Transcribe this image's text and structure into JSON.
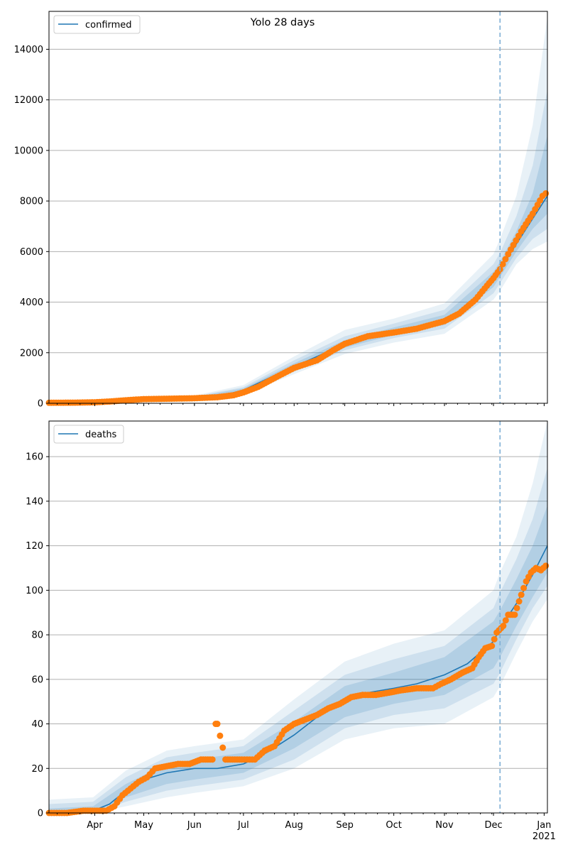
{
  "title": "Yolo 28 days",
  "colors": {
    "line": "#1f77b4",
    "points": "#ff7f0e",
    "band": "#1f77b4",
    "grid": "#b0b0b0",
    "vline": "#7fafd5"
  },
  "x_axis": {
    "start": "2020-03-04",
    "end": "2021-01-03",
    "vline_date": "2020-12-05",
    "month_ticks": [
      {
        "date": "2020-04-01",
        "label": "Apr"
      },
      {
        "date": "2020-05-01",
        "label": "May"
      },
      {
        "date": "2020-06-01",
        "label": "Jun"
      },
      {
        "date": "2020-07-01",
        "label": "Jul"
      },
      {
        "date": "2020-08-01",
        "label": "Aug"
      },
      {
        "date": "2020-09-01",
        "label": "Sep"
      },
      {
        "date": "2020-10-01",
        "label": "Oct"
      },
      {
        "date": "2020-11-01",
        "label": "Nov"
      },
      {
        "date": "2020-12-01",
        "label": "Dec"
      },
      {
        "date": "2021-01-01",
        "label": "Jan"
      }
    ],
    "year_label": "2021"
  },
  "chart_data": [
    {
      "type": "line",
      "legend": "confirmed",
      "legend_position": "top-left",
      "grid": "horizontal",
      "ylim": [
        0,
        15500
      ],
      "yticks": [
        0,
        2000,
        4000,
        6000,
        8000,
        10000,
        12000,
        14000
      ],
      "model_line": [
        [
          "2020-03-04",
          20
        ],
        [
          "2020-04-01",
          40
        ],
        [
          "2020-04-15",
          90
        ],
        [
          "2020-05-01",
          170
        ],
        [
          "2020-06-01",
          210
        ],
        [
          "2020-06-15",
          260
        ],
        [
          "2020-07-01",
          520
        ],
        [
          "2020-07-15",
          950
        ],
        [
          "2020-08-01",
          1450
        ],
        [
          "2020-08-15",
          1850
        ],
        [
          "2020-09-01",
          2350
        ],
        [
          "2020-09-15",
          2650
        ],
        [
          "2020-10-01",
          2850
        ],
        [
          "2020-10-15",
          3000
        ],
        [
          "2020-11-01",
          3300
        ],
        [
          "2020-11-15",
          3800
        ],
        [
          "2020-12-01",
          4900
        ],
        [
          "2020-12-05",
          5300
        ],
        [
          "2020-12-15",
          6300
        ],
        [
          "2020-12-25",
          7300
        ],
        [
          "2021-01-03",
          8200
        ]
      ],
      "band_90": [
        [
          "2020-03-04",
          0,
          60
        ],
        [
          "2020-04-01",
          10,
          80
        ],
        [
          "2020-05-01",
          100,
          260
        ],
        [
          "2020-06-01",
          140,
          300
        ],
        [
          "2020-07-01",
          350,
          720
        ],
        [
          "2020-08-01",
          1150,
          1850
        ],
        [
          "2020-09-01",
          1950,
          2900
        ],
        [
          "2020-10-01",
          2400,
          3350
        ],
        [
          "2020-11-01",
          2750,
          3950
        ],
        [
          "2020-12-01",
          4100,
          5900
        ],
        [
          "2020-12-05",
          4450,
          6500
        ],
        [
          "2020-12-15",
          5500,
          8200
        ],
        [
          "2020-12-25",
          6100,
          11000
        ],
        [
          "2021-01-03",
          6400,
          15300
        ]
      ],
      "band_75": [
        [
          "2020-03-04",
          5,
          45
        ],
        [
          "2020-04-01",
          20,
          65
        ],
        [
          "2020-05-01",
          120,
          230
        ],
        [
          "2020-06-01",
          160,
          270
        ],
        [
          "2020-07-01",
          400,
          640
        ],
        [
          "2020-08-01",
          1250,
          1700
        ],
        [
          "2020-09-01",
          2100,
          2650
        ],
        [
          "2020-10-01",
          2580,
          3150
        ],
        [
          "2020-11-01",
          2950,
          3700
        ],
        [
          "2020-12-01",
          4350,
          5500
        ],
        [
          "2020-12-05",
          4750,
          5950
        ],
        [
          "2020-12-15",
          5750,
          7400
        ],
        [
          "2020-12-25",
          6500,
          9400
        ],
        [
          "2021-01-03",
          6900,
          12400
        ]
      ],
      "band_50": [
        [
          "2020-03-04",
          10,
          35
        ],
        [
          "2020-04-01",
          28,
          55
        ],
        [
          "2020-05-01",
          140,
          205
        ],
        [
          "2020-06-01",
          180,
          245
        ],
        [
          "2020-07-01",
          450,
          590
        ],
        [
          "2020-08-01",
          1330,
          1580
        ],
        [
          "2020-09-01",
          2200,
          2500
        ],
        [
          "2020-10-01",
          2700,
          3000
        ],
        [
          "2020-11-01",
          3100,
          3500
        ],
        [
          "2020-12-01",
          4600,
          5200
        ],
        [
          "2020-12-05",
          5000,
          5600
        ],
        [
          "2020-12-15",
          6000,
          6800
        ],
        [
          "2020-12-25",
          6900,
          8300
        ],
        [
          "2021-01-03",
          7500,
          10600
        ]
      ],
      "observed": [
        [
          "2020-03-04",
          20
        ],
        [
          "2020-03-20",
          25
        ],
        [
          "2020-04-01",
          40
        ],
        [
          "2020-04-10",
          70
        ],
        [
          "2020-04-20",
          120
        ],
        [
          "2020-05-01",
          165
        ],
        [
          "2020-05-15",
          180
        ],
        [
          "2020-06-01",
          200
        ],
        [
          "2020-06-15",
          240
        ],
        [
          "2020-06-25",
          320
        ],
        [
          "2020-07-01",
          430
        ],
        [
          "2020-07-10",
          650
        ],
        [
          "2020-07-20",
          1000
        ],
        [
          "2020-08-01",
          1400
        ],
        [
          "2020-08-15",
          1700
        ],
        [
          "2020-08-25",
          2100
        ],
        [
          "2020-09-01",
          2350
        ],
        [
          "2020-09-15",
          2650
        ],
        [
          "2020-10-01",
          2800
        ],
        [
          "2020-10-15",
          2950
        ],
        [
          "2020-11-01",
          3250
        ],
        [
          "2020-11-10",
          3550
        ],
        [
          "2020-11-20",
          4100
        ],
        [
          "2020-11-27",
          4650
        ],
        [
          "2020-12-01",
          4950
        ],
        [
          "2020-12-05",
          5300
        ],
        [
          "2020-12-10",
          5900
        ],
        [
          "2020-12-18",
          6800
        ],
        [
          "2020-12-25",
          7500
        ],
        [
          "2020-12-31",
          8200
        ],
        [
          "2021-01-02",
          8300
        ]
      ]
    },
    {
      "type": "line",
      "legend": "deaths",
      "legend_position": "top-left",
      "grid": "horizontal",
      "ylim": [
        0,
        176
      ],
      "yticks": [
        0,
        20,
        40,
        60,
        80,
        100,
        120,
        140,
        160
      ],
      "model_line": [
        [
          "2020-03-04",
          0
        ],
        [
          "2020-03-31",
          1
        ],
        [
          "2020-04-10",
          4
        ],
        [
          "2020-04-20",
          10
        ],
        [
          "2020-05-01",
          15
        ],
        [
          "2020-05-15",
          18
        ],
        [
          "2020-06-01",
          20
        ],
        [
          "2020-06-15",
          20
        ],
        [
          "2020-07-01",
          22
        ],
        [
          "2020-07-15",
          27
        ],
        [
          "2020-08-01",
          35
        ],
        [
          "2020-08-15",
          43
        ],
        [
          "2020-09-01",
          50
        ],
        [
          "2020-09-15",
          54
        ],
        [
          "2020-10-01",
          56
        ],
        [
          "2020-10-15",
          58
        ],
        [
          "2020-11-01",
          62
        ],
        [
          "2020-11-15",
          67
        ],
        [
          "2020-12-01",
          77
        ],
        [
          "2020-12-05",
          83
        ],
        [
          "2020-12-15",
          94
        ],
        [
          "2020-12-25",
          107
        ],
        [
          "2021-01-03",
          120
        ]
      ],
      "band_90": [
        [
          "2020-03-04",
          0,
          6
        ],
        [
          "2020-03-31",
          0,
          7
        ],
        [
          "2020-04-20",
          3,
          19
        ],
        [
          "2020-05-15",
          7,
          28
        ],
        [
          "2020-06-01",
          9,
          30
        ],
        [
          "2020-07-01",
          12,
          33
        ],
        [
          "2020-08-01",
          20,
          51
        ],
        [
          "2020-09-01",
          33,
          68
        ],
        [
          "2020-10-01",
          38,
          76
        ],
        [
          "2020-11-01",
          40,
          82
        ],
        [
          "2020-12-01",
          52,
          100
        ],
        [
          "2020-12-05",
          57,
          108
        ],
        [
          "2020-12-15",
          72,
          124
        ],
        [
          "2020-12-25",
          86,
          148
        ],
        [
          "2021-01-03",
          96,
          176
        ]
      ],
      "band_75": [
        [
          "2020-03-04",
          0,
          4
        ],
        [
          "2020-03-31",
          0,
          5
        ],
        [
          "2020-04-20",
          5,
          16
        ],
        [
          "2020-05-15",
          10,
          25
        ],
        [
          "2020-06-01",
          12,
          27
        ],
        [
          "2020-07-01",
          15,
          30
        ],
        [
          "2020-08-01",
          24,
          46
        ],
        [
          "2020-09-01",
          38,
          62
        ],
        [
          "2020-10-01",
          44,
          69
        ],
        [
          "2020-11-01",
          47,
          75
        ],
        [
          "2020-12-01",
          58,
          92
        ],
        [
          "2020-12-05",
          63,
          99
        ],
        [
          "2020-12-15",
          78,
          114
        ],
        [
          "2020-12-25",
          92,
          132
        ],
        [
          "2021-01-03",
          102,
          155
        ]
      ],
      "band_50": [
        [
          "2020-03-04",
          0,
          2
        ],
        [
          "2020-03-31",
          0,
          3
        ],
        [
          "2020-04-20",
          7,
          13
        ],
        [
          "2020-05-15",
          13,
          22
        ],
        [
          "2020-06-01",
          15,
          24
        ],
        [
          "2020-07-01",
          18,
          27
        ],
        [
          "2020-08-01",
          29,
          41
        ],
        [
          "2020-09-01",
          43,
          57
        ],
        [
          "2020-10-01",
          49,
          63
        ],
        [
          "2020-11-01",
          53,
          70
        ],
        [
          "2020-12-01",
          65,
          86
        ],
        [
          "2020-12-05",
          70,
          91
        ],
        [
          "2020-12-15",
          84,
          105
        ],
        [
          "2020-12-25",
          97,
          120
        ],
        [
          "2021-01-03",
          108,
          138
        ]
      ],
      "observed": [
        [
          "2020-03-04",
          0
        ],
        [
          "2020-03-15",
          0
        ],
        [
          "2020-03-25",
          1
        ],
        [
          "2020-04-01",
          1
        ],
        [
          "2020-04-08",
          1
        ],
        [
          "2020-04-13",
          3
        ],
        [
          "2020-04-18",
          8
        ],
        [
          "2020-04-23",
          11
        ],
        [
          "2020-04-28",
          14
        ],
        [
          "2020-05-03",
          16
        ],
        [
          "2020-05-08",
          20
        ],
        [
          "2020-05-15",
          21
        ],
        [
          "2020-05-22",
          22
        ],
        [
          "2020-05-29",
          22
        ],
        [
          "2020-06-05",
          24
        ],
        [
          "2020-06-12",
          24
        ],
        [
          "2020-06-14",
          40
        ],
        [
          "2020-06-15",
          40
        ],
        [
          "2020-06-20",
          24
        ],
        [
          "2020-06-30",
          24
        ],
        [
          "2020-07-08",
          24
        ],
        [
          "2020-07-14",
          28
        ],
        [
          "2020-07-20",
          30
        ],
        [
          "2020-07-26",
          37
        ],
        [
          "2020-08-01",
          40
        ],
        [
          "2020-08-08",
          42
        ],
        [
          "2020-08-15",
          44
        ],
        [
          "2020-08-22",
          47
        ],
        [
          "2020-08-29",
          49
        ],
        [
          "2020-09-05",
          52
        ],
        [
          "2020-09-12",
          53
        ],
        [
          "2020-09-20",
          53
        ],
        [
          "2020-09-28",
          54
        ],
        [
          "2020-10-05",
          55
        ],
        [
          "2020-10-15",
          56
        ],
        [
          "2020-10-25",
          56
        ],
        [
          "2020-10-30",
          58
        ],
        [
          "2020-11-05",
          60
        ],
        [
          "2020-11-12",
          63
        ],
        [
          "2020-11-18",
          65
        ],
        [
          "2020-11-22",
          70
        ],
        [
          "2020-11-26",
          74
        ],
        [
          "2020-11-30",
          75
        ],
        [
          "2020-12-03",
          81
        ],
        [
          "2020-12-07",
          84
        ],
        [
          "2020-12-10",
          89
        ],
        [
          "2020-12-14",
          89
        ],
        [
          "2020-12-18",
          98
        ],
        [
          "2020-12-21",
          104
        ],
        [
          "2020-12-24",
          108
        ],
        [
          "2020-12-27",
          110
        ],
        [
          "2020-12-30",
          109
        ],
        [
          "2021-01-02",
          111
        ]
      ]
    }
  ]
}
